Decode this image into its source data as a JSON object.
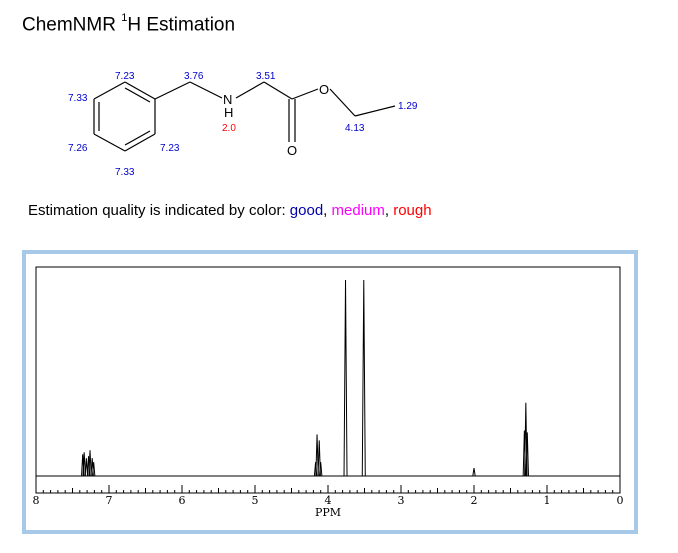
{
  "title": {
    "main": "ChemNMR ",
    "sup": "1",
    "tail": "H Estimation"
  },
  "molecule": {
    "atoms": {
      "n": "N",
      "h": "H",
      "o_ether": "O",
      "o_carbonyl": "O"
    },
    "shifts": [
      {
        "label": "7.23",
        "quality": "good"
      },
      {
        "label": "7.33",
        "quality": "good"
      },
      {
        "label": "7.26",
        "quality": "good"
      },
      {
        "label": "7.33",
        "quality": "good"
      },
      {
        "label": "7.23",
        "quality": "good"
      },
      {
        "label": "3.76",
        "quality": "good"
      },
      {
        "label": "3.51",
        "quality": "good"
      },
      {
        "label": "2.0",
        "quality": "rough"
      },
      {
        "label": "4.13",
        "quality": "good"
      },
      {
        "label": "1.29",
        "quality": "good"
      }
    ]
  },
  "quality_legend": {
    "prefix": "Estimation quality is indicated by color: ",
    "good": "good",
    "sep1": ", ",
    "medium": "medium",
    "sep2": ", ",
    "rough": "rough"
  },
  "colors": {
    "good": "#0000cc",
    "medium": "#ff00ff",
    "rough": "#ff0000",
    "frame": "#a8c8e8"
  },
  "chart_data": {
    "type": "line",
    "title": "",
    "xlabel": "PPM",
    "ylabel": "",
    "xlim": [
      8,
      0
    ],
    "x_reversed": true,
    "ticks": [
      "8",
      "7",
      "6",
      "5",
      "4",
      "3",
      "2",
      "1",
      "0"
    ],
    "grid": false,
    "peaks": [
      {
        "ppm": 7.36,
        "height": 0.11
      },
      {
        "ppm": 7.34,
        "height": 0.12
      },
      {
        "ppm": 7.31,
        "height": 0.09
      },
      {
        "ppm": 7.28,
        "height": 0.1
      },
      {
        "ppm": 7.26,
        "height": 0.13
      },
      {
        "ppm": 7.23,
        "height": 0.09
      },
      {
        "ppm": 7.21,
        "height": 0.07
      },
      {
        "ppm": 4.17,
        "height": 0.07
      },
      {
        "ppm": 4.15,
        "height": 0.21
      },
      {
        "ppm": 4.12,
        "height": 0.18
      },
      {
        "ppm": 4.1,
        "height": 0.07
      },
      {
        "ppm": 3.76,
        "height": 0.99
      },
      {
        "ppm": 3.51,
        "height": 0.99
      },
      {
        "ppm": 2.0,
        "height": 0.04
      },
      {
        "ppm": 1.31,
        "height": 0.23
      },
      {
        "ppm": 1.29,
        "height": 0.37
      },
      {
        "ppm": 1.27,
        "height": 0.22
      }
    ]
  }
}
